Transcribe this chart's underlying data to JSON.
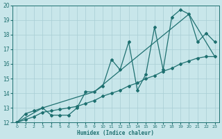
{
  "xlabel": "Humidex (Indice chaleur)",
  "xlim": [
    -0.5,
    23.5
  ],
  "ylim": [
    12,
    20
  ],
  "xticks": [
    0,
    1,
    2,
    3,
    4,
    5,
    6,
    7,
    8,
    9,
    10,
    11,
    12,
    13,
    14,
    15,
    16,
    17,
    18,
    19,
    20,
    21,
    22,
    23
  ],
  "yticks": [
    12,
    13,
    14,
    15,
    16,
    17,
    18,
    19,
    20
  ],
  "bg_color": "#c8e6ea",
  "grid_color": "#a8cdd4",
  "line_color": "#1e7070",
  "line1_x": [
    0,
    1,
    2,
    3,
    4,
    5,
    6,
    7,
    8,
    9,
    10,
    11,
    12,
    13,
    14,
    15,
    16,
    17,
    18,
    19,
    20,
    21,
    22,
    23
  ],
  "line1_y": [
    12.0,
    12.6,
    12.8,
    13.0,
    12.5,
    12.5,
    12.5,
    13.0,
    14.1,
    14.1,
    14.5,
    16.3,
    15.6,
    17.5,
    14.2,
    15.3,
    18.5,
    15.6,
    19.2,
    19.7,
    19.4,
    17.5,
    18.1,
    17.5
  ],
  "line2_x": [
    0,
    3,
    9,
    20,
    23
  ],
  "line2_y": [
    12.0,
    13.0,
    14.1,
    19.4,
    16.5
  ],
  "line3_x": [
    0,
    1,
    2,
    3,
    4,
    5,
    6,
    7,
    8,
    9,
    10,
    11,
    12,
    13,
    14,
    15,
    16,
    17,
    18,
    19,
    20,
    21,
    22,
    23
  ],
  "line3_y": [
    12.0,
    12.2,
    12.4,
    12.7,
    12.8,
    12.9,
    13.0,
    13.1,
    13.3,
    13.5,
    13.8,
    14.0,
    14.2,
    14.5,
    14.7,
    15.0,
    15.2,
    15.5,
    15.7,
    16.0,
    16.2,
    16.4,
    16.5,
    16.5
  ]
}
